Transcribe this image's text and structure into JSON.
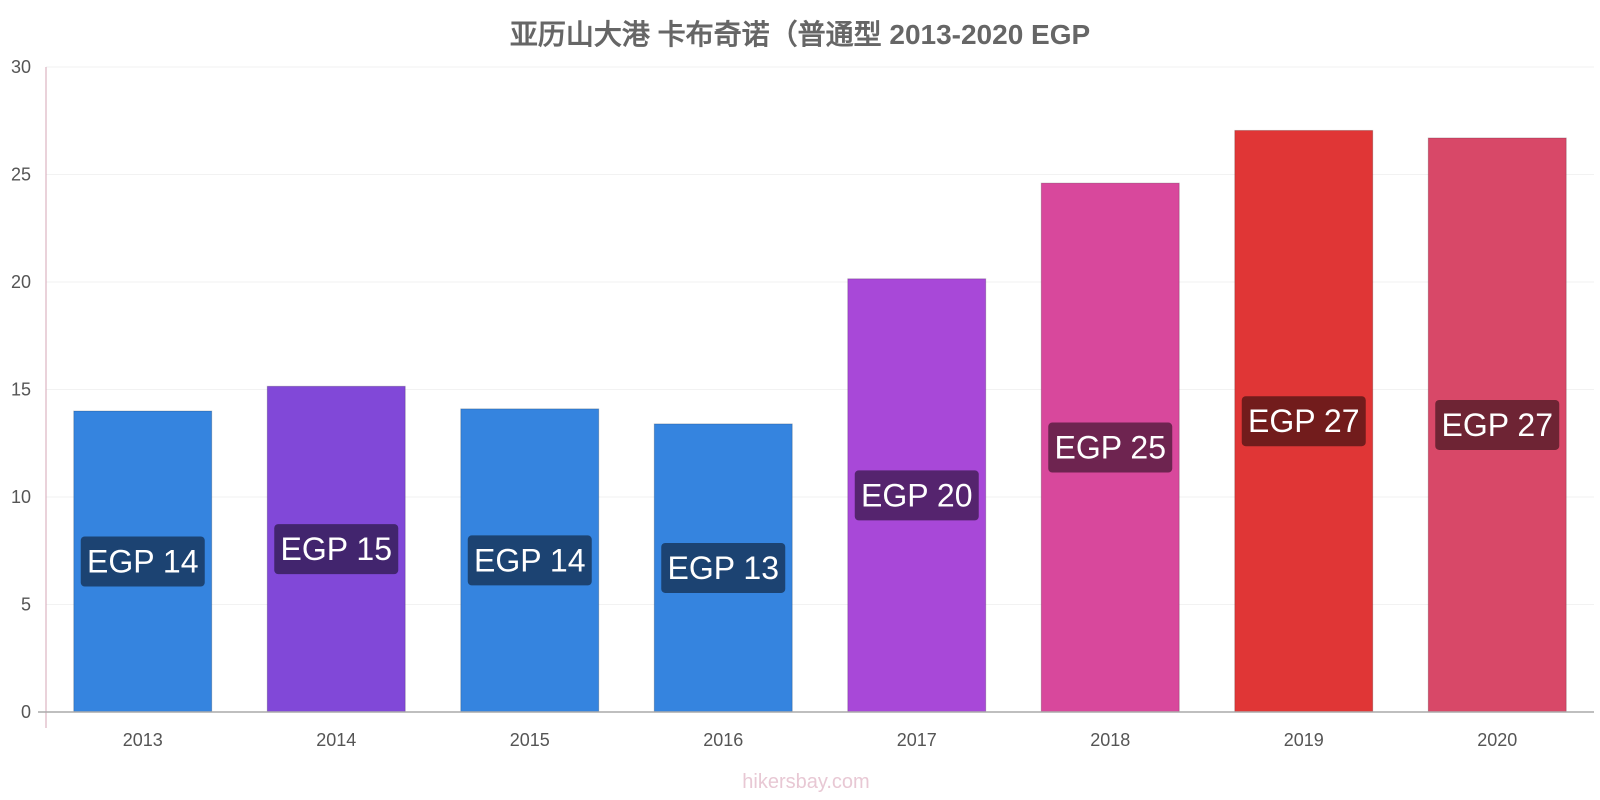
{
  "chart_data": {
    "type": "bar",
    "title": "亚历山大港 卡布奇诺（普通型 2013-2020 EGP",
    "xlabel": "",
    "ylabel": "",
    "ylim": [
      0,
      30
    ],
    "yticks": [
      0,
      5,
      10,
      15,
      20,
      25,
      30
    ],
    "grid": true,
    "categories": [
      "2013",
      "2014",
      "2015",
      "2016",
      "2017",
      "2018",
      "2019",
      "2020"
    ],
    "values": [
      14.0,
      15.15,
      14.1,
      13.4,
      20.15,
      24.6,
      27.05,
      26.7
    ],
    "data_labels": [
      "EGP 14",
      "EGP 15",
      "EGP 14",
      "EGP 13",
      "EGP 20",
      "EGP 25",
      "EGP 27",
      "EGP 27"
    ],
    "bar_colors": [
      "#3584df",
      "#8148d8",
      "#3584df",
      "#3584df",
      "#a848d8",
      "#d8489c",
      "#e03636",
      "#d84868"
    ],
    "label_bg_colors": [
      "#1c4372",
      "#42256e",
      "#1c4372",
      "#1c4372",
      "#55246e",
      "#6e2450",
      "#721c1c",
      "#6e2434"
    ]
  },
  "watermark": "hikersbay.com"
}
